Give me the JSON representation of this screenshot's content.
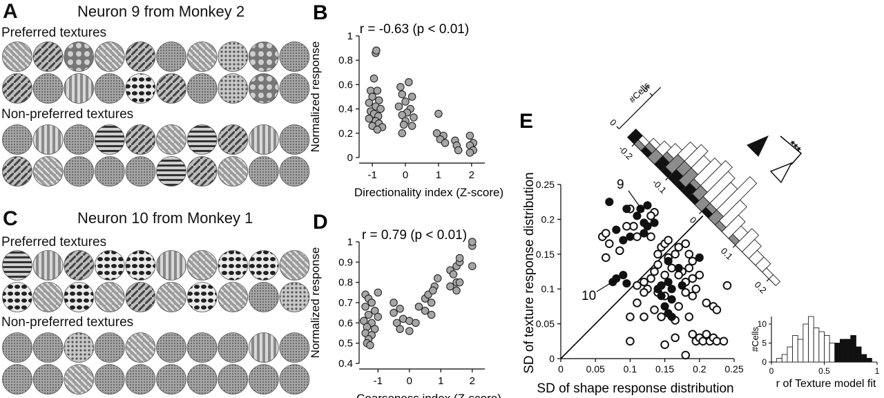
{
  "panel_A": {
    "letter": "A",
    "title": "Neuron 9 from Monkey 2",
    "preferred_label": "Preferred textures",
    "nonpreferred_label": "Non-preferred textures"
  },
  "panel_C": {
    "letter": "C",
    "title": "Neuron 10 from Monkey 1",
    "preferred_label": "Preferred textures",
    "nonpreferred_label": "Non-preferred textures"
  },
  "chart_data": [
    {
      "id": "B",
      "type": "scatter",
      "letter": "B",
      "title": "r = -0.63 (p < 0.01)",
      "xlabel": "Directionality index (Z-score)",
      "ylabel": "Normalized response",
      "xlim": [
        -1.4,
        2.4
      ],
      "ylim": [
        0,
        1
      ],
      "xticks": [
        -1,
        0,
        1,
        2
      ],
      "yticks": [
        0,
        0.2,
        0.4,
        0.6,
        0.8,
        1
      ],
      "ytick_labels": [
        "0",
        "0.2",
        "0.4",
        "0.6",
        "0.8",
        "1"
      ],
      "points": [
        [
          -0.9,
          0.86
        ],
        [
          -0.88,
          0.88
        ],
        [
          -0.95,
          0.65
        ],
        [
          -1.05,
          0.55
        ],
        [
          -0.85,
          0.55
        ],
        [
          -1.0,
          0.5
        ],
        [
          -0.8,
          0.47
        ],
        [
          -1.1,
          0.45
        ],
        [
          -0.9,
          0.42
        ],
        [
          -0.75,
          0.4
        ],
        [
          -1.05,
          0.38
        ],
        [
          -0.95,
          0.36
        ],
        [
          -0.82,
          0.34
        ],
        [
          -1.1,
          0.32
        ],
        [
          -0.9,
          0.3
        ],
        [
          -0.8,
          0.28
        ],
        [
          -1.0,
          0.26
        ],
        [
          -0.7,
          0.25
        ],
        [
          -0.85,
          0.23
        ],
        [
          -0.15,
          0.58
        ],
        [
          0.1,
          0.62
        ],
        [
          -0.1,
          0.52
        ],
        [
          0.2,
          0.5
        ],
        [
          0.0,
          0.46
        ],
        [
          -0.2,
          0.42
        ],
        [
          0.15,
          0.4
        ],
        [
          0.05,
          0.37
        ],
        [
          -0.1,
          0.35
        ],
        [
          0.25,
          0.33
        ],
        [
          0.0,
          0.3
        ],
        [
          -0.05,
          0.27
        ],
        [
          0.2,
          0.26
        ],
        [
          -0.1,
          0.2
        ],
        [
          1.0,
          0.36
        ],
        [
          0.95,
          0.2
        ],
        [
          1.15,
          0.18
        ],
        [
          1.05,
          0.15
        ],
        [
          1.2,
          0.12
        ],
        [
          1.5,
          0.14
        ],
        [
          1.55,
          0.1
        ],
        [
          1.6,
          0.06
        ],
        [
          1.95,
          0.18
        ],
        [
          2.05,
          0.12
        ],
        [
          1.95,
          0.1
        ],
        [
          2.05,
          0.06
        ],
        [
          1.95,
          0.04
        ]
      ]
    },
    {
      "id": "D",
      "type": "scatter",
      "letter": "D",
      "title": "r = 0.79 (p < 0.01)",
      "xlabel": "Coarseness index (Z-score)",
      "ylabel": "Normalized response",
      "xlim": [
        -1.6,
        2.4
      ],
      "ylim": [
        0.4,
        1
      ],
      "xticks": [
        -1,
        0,
        1,
        2
      ],
      "yticks": [
        0.4,
        0.5,
        0.6,
        0.7,
        0.8,
        0.9,
        1
      ],
      "ytick_labels": [
        "0.4",
        "0.5",
        "0.6",
        "0.7",
        "0.8",
        "0.9",
        "1"
      ],
      "points": [
        [
          -1.4,
          0.74
        ],
        [
          -1.3,
          0.72
        ],
        [
          -1.2,
          0.7
        ],
        [
          -1.0,
          0.75
        ],
        [
          -1.4,
          0.68
        ],
        [
          -1.1,
          0.66
        ],
        [
          -1.3,
          0.64
        ],
        [
          -1.0,
          0.63
        ],
        [
          -1.45,
          0.61
        ],
        [
          -1.2,
          0.6
        ],
        [
          -1.35,
          0.58
        ],
        [
          -1.1,
          0.57
        ],
        [
          -1.4,
          0.55
        ],
        [
          -1.2,
          0.54
        ],
        [
          -1.3,
          0.52
        ],
        [
          -1.35,
          0.5
        ],
        [
          -1.25,
          0.49
        ],
        [
          -0.5,
          0.7
        ],
        [
          -0.3,
          0.67
        ],
        [
          -0.5,
          0.65
        ],
        [
          -0.2,
          0.62
        ],
        [
          -0.4,
          0.6
        ],
        [
          -0.3,
          0.57
        ],
        [
          0.0,
          0.61
        ],
        [
          0.2,
          0.6
        ],
        [
          0.0,
          0.56
        ],
        [
          0.3,
          0.68
        ],
        [
          0.5,
          0.72
        ],
        [
          0.6,
          0.74
        ],
        [
          0.7,
          0.7
        ],
        [
          0.8,
          0.78
        ],
        [
          0.9,
          0.82
        ],
        [
          0.75,
          0.76
        ],
        [
          0.5,
          0.66
        ],
        [
          0.7,
          0.64
        ],
        [
          1.3,
          0.86
        ],
        [
          1.5,
          0.88
        ],
        [
          1.4,
          0.84
        ],
        [
          1.5,
          0.8
        ],
        [
          1.3,
          0.78
        ],
        [
          1.5,
          0.76
        ],
        [
          1.6,
          0.8
        ],
        [
          1.6,
          0.9
        ],
        [
          2.0,
          0.98
        ],
        [
          2.0,
          1.0
        ],
        [
          1.6,
          0.92
        ],
        [
          2.0,
          0.88
        ]
      ]
    },
    {
      "id": "E",
      "type": "scatter",
      "letter": "E",
      "xlabel": "SD of shape response distribution",
      "ylabel": "SD of texture response distribution",
      "xlim": [
        0,
        0.25
      ],
      "ylim": [
        0,
        0.25
      ],
      "xticks": [
        0,
        0.05,
        0.1,
        0.15,
        0.2,
        0.25
      ],
      "xtick_labels": [
        "0",
        "0.05",
        "0.1",
        "0.15",
        "0.2",
        "0.25"
      ],
      "yticks": [
        0,
        0.05,
        0.1,
        0.15,
        0.2,
        0.25
      ],
      "ytick_labels": [
        "0",
        "0.05",
        "0.1",
        "0.15",
        "0.2",
        "0.25"
      ],
      "diagonal": true,
      "annotations": [
        "9",
        "10"
      ],
      "filled_points": [
        [
          0.07,
          0.225
        ],
        [
          0.095,
          0.215
        ],
        [
          0.115,
          0.215
        ],
        [
          0.125,
          0.22
        ],
        [
          0.11,
          0.205
        ],
        [
          0.12,
          0.195
        ],
        [
          0.125,
          0.19
        ],
        [
          0.135,
          0.195
        ],
        [
          0.08,
          0.185
        ],
        [
          0.12,
          0.18
        ],
        [
          0.1,
          0.175
        ],
        [
          0.09,
          0.17
        ],
        [
          0.155,
          0.14
        ],
        [
          0.2,
          0.145
        ],
        [
          0.17,
          0.13
        ],
        [
          0.075,
          0.11
        ],
        [
          0.08,
          0.115
        ],
        [
          0.09,
          0.12
        ],
        [
          0.095,
          0.108
        ],
        [
          0.14,
          0.1
        ],
        [
          0.145,
          0.105
        ],
        [
          0.155,
          0.11
        ],
        [
          0.16,
          0.1
        ],
        [
          0.175,
          0.105
        ],
        [
          0.145,
          0.09
        ],
        [
          0.16,
          0.085
        ],
        [
          0.15,
          0.075
        ],
        [
          0.16,
          0.06
        ],
        [
          0.155,
          0.065
        ]
      ],
      "open_points": [
        [
          0.06,
          0.175
        ],
        [
          0.065,
          0.18
        ],
        [
          0.1,
          0.215
        ],
        [
          0.105,
          0.19
        ],
        [
          0.135,
          0.21
        ],
        [
          0.13,
          0.205
        ],
        [
          0.095,
          0.19
        ],
        [
          0.07,
          0.165
        ],
        [
          0.085,
          0.155
        ],
        [
          0.065,
          0.145
        ],
        [
          0.11,
          0.175
        ],
        [
          0.13,
          0.175
        ],
        [
          0.145,
          0.16
        ],
        [
          0.15,
          0.165
        ],
        [
          0.155,
          0.17
        ],
        [
          0.165,
          0.15
        ],
        [
          0.17,
          0.16
        ],
        [
          0.18,
          0.165
        ],
        [
          0.185,
          0.15
        ],
        [
          0.14,
          0.15
        ],
        [
          0.155,
          0.145
        ],
        [
          0.14,
          0.135
        ],
        [
          0.16,
          0.13
        ],
        [
          0.175,
          0.125
        ],
        [
          0.185,
          0.13
        ],
        [
          0.19,
          0.14
        ],
        [
          0.135,
          0.125
        ],
        [
          0.15,
          0.12
        ],
        [
          0.13,
          0.115
        ],
        [
          0.12,
          0.11
        ],
        [
          0.11,
          0.105
        ],
        [
          0.125,
          0.1
        ],
        [
          0.14,
          0.095
        ],
        [
          0.15,
          0.09
        ],
        [
          0.17,
          0.12
        ],
        [
          0.18,
          0.11
        ],
        [
          0.19,
          0.115
        ],
        [
          0.2,
          0.12
        ],
        [
          0.18,
          0.095
        ],
        [
          0.19,
          0.09
        ],
        [
          0.195,
          0.1
        ],
        [
          0.21,
          0.08
        ],
        [
          0.22,
          0.075
        ],
        [
          0.225,
          0.07
        ],
        [
          0.24,
          0.105
        ],
        [
          0.12,
          0.095
        ],
        [
          0.11,
          0.08
        ],
        [
          0.1,
          0.06
        ],
        [
          0.12,
          0.06
        ],
        [
          0.135,
          0.07
        ],
        [
          0.145,
          0.06
        ],
        [
          0.165,
          0.055
        ],
        [
          0.185,
          0.06
        ],
        [
          0.17,
          0.075
        ],
        [
          0.1,
          0.025
        ],
        [
          0.15,
          0.02
        ],
        [
          0.165,
          0.03
        ],
        [
          0.19,
          0.035
        ],
        [
          0.195,
          0.025
        ],
        [
          0.2,
          0.03
        ],
        [
          0.205,
          0.025
        ],
        [
          0.21,
          0.035
        ],
        [
          0.215,
          0.025
        ],
        [
          0.22,
          0.03
        ],
        [
          0.225,
          0.025
        ],
        [
          0.235,
          0.025
        ],
        [
          0.18,
          0.005
        ]
      ],
      "diag_histogram": {
        "ylabel": "#Cells",
        "yticks": [
          0,
          5
        ],
        "xticks": [
          -0.2,
          -0.1,
          0,
          0.1,
          0.2
        ],
        "xtick_labels": [
          "-0.2",
          "-0.1",
          "0",
          "0.1",
          "0.2"
        ],
        "significance": "***",
        "bin_centers": [
          -0.21,
          -0.19,
          -0.17,
          -0.15,
          -0.13,
          -0.11,
          -0.09,
          -0.07,
          -0.05,
          -0.03,
          -0.01,
          0.01,
          0.03,
          0.05,
          0.07,
          0.09,
          0.11,
          0.13,
          0.15,
          0.17,
          0.19,
          0.21
        ],
        "black": [
          2,
          0,
          1,
          0,
          2,
          1,
          2,
          1,
          2,
          1,
          0,
          1,
          0,
          0,
          0,
          0,
          0,
          0,
          0,
          0,
          0,
          0
        ],
        "gray": [
          0,
          1,
          1,
          2,
          1,
          3,
          2,
          3,
          1,
          2,
          2,
          1,
          2,
          1,
          0,
          1,
          0,
          0,
          0,
          0,
          0,
          0
        ],
        "white": [
          0,
          1,
          1,
          2,
          2,
          3,
          4,
          3,
          5,
          6,
          6,
          5,
          8,
          5,
          4,
          2,
          4,
          3,
          2,
          2,
          1,
          1
        ]
      }
    },
    {
      "id": "E_inset",
      "type": "bar",
      "xlabel": "r of Texture model fit",
      "ylabel": "#Cells",
      "xlim": [
        0,
        1
      ],
      "ylim": [
        0,
        12
      ],
      "xticks": [
        0,
        0.5,
        1
      ],
      "xtick_labels": [
        "0",
        "0.5",
        "1"
      ],
      "yticks": [
        0,
        5,
        10
      ],
      "bin_width": 0.05,
      "bin_centers": [
        0.025,
        0.075,
        0.125,
        0.175,
        0.225,
        0.275,
        0.325,
        0.375,
        0.425,
        0.475,
        0.525,
        0.575,
        0.625,
        0.675,
        0.725,
        0.775,
        0.825,
        0.875,
        0.925,
        0.975
      ],
      "white": [
        0,
        1,
        2,
        4,
        7,
        6,
        10,
        12,
        9,
        8,
        7,
        5,
        0,
        0,
        0,
        0,
        0,
        0,
        0,
        0
      ],
      "black": [
        0,
        0,
        0,
        0,
        0,
        0,
        0,
        0,
        0,
        0,
        0,
        0,
        5,
        6,
        6,
        7,
        4,
        2,
        1,
        0
      ]
    }
  ]
}
